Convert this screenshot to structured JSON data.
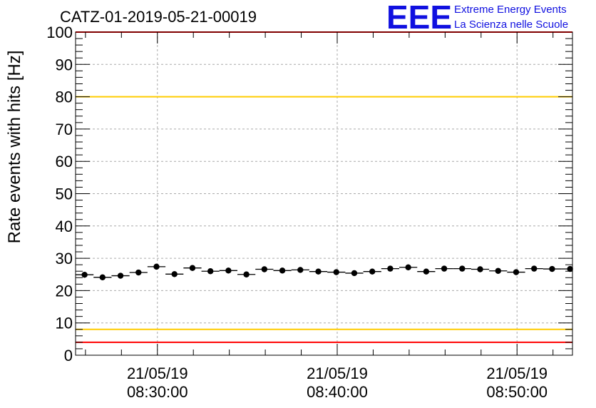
{
  "chart_data": {
    "type": "scatter",
    "title": "CATZ-01-2019-05-21-00019",
    "ylabel": "Rate events with hits [Hz]",
    "xlabel": "",
    "ylim": [
      0,
      100
    ],
    "x_range": [
      "2019-05-21 08:25:27",
      "2019-05-21 08:53:05"
    ],
    "y_ticks": [
      0,
      10,
      20,
      30,
      40,
      50,
      60,
      70,
      80,
      90,
      100
    ],
    "x_ticks": [
      {
        "date": "21/05/19",
        "time": "08:30:00"
      },
      {
        "date": "21/05/19",
        "time": "08:40:00"
      },
      {
        "date": "21/05/19",
        "time": "08:50:00"
      }
    ],
    "grid": true,
    "bin_width_minutes": 1,
    "thresholds": [
      {
        "value": 100,
        "color": "#ff0000"
      },
      {
        "value": 80,
        "color": "#ffcc00"
      },
      {
        "value": 8,
        "color": "#ffcc00"
      },
      {
        "value": 4,
        "color": "#ff0000"
      }
    ],
    "series": [
      {
        "x": [
          "08:25:57",
          "08:26:57",
          "08:27:57",
          "08:28:57",
          "08:29:57",
          "08:30:57",
          "08:31:57",
          "08:32:57",
          "08:33:57",
          "08:34:57",
          "08:35:57",
          "08:36:57",
          "08:37:57",
          "08:38:57",
          "08:39:57",
          "08:40:57",
          "08:41:57",
          "08:42:57",
          "08:43:57",
          "08:44:57",
          "08:45:57",
          "08:46:57",
          "08:47:57",
          "08:48:57",
          "08:49:57",
          "08:50:57",
          "08:51:57",
          "08:52:57"
        ],
        "y": [
          24.9,
          24.1,
          24.6,
          25.6,
          27.4,
          25.1,
          27.0,
          26.0,
          26.2,
          25.0,
          26.6,
          26.2,
          26.4,
          25.9,
          25.7,
          25.4,
          25.9,
          26.8,
          27.2,
          25.9,
          26.8,
          26.8,
          26.6,
          26.1,
          25.7,
          26.8,
          26.7,
          26.7
        ],
        "color": "#000000"
      }
    ]
  },
  "logo": {
    "mark": "EEE",
    "line1": "Extreme Energy Events",
    "line2": "La Scienza nelle Scuole",
    "color": "#1010e0"
  }
}
